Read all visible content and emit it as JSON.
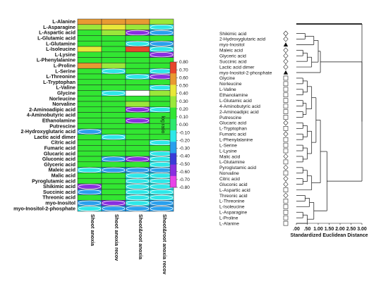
{
  "chart_data": [
    {
      "type": "heatmap",
      "rows": [
        "L-Alanine",
        "L-Asparagine",
        "L-Aspartic acid",
        "L-Glutamic acid",
        "L-Glutamine",
        "L-Isoleucine",
        "L-Lysine",
        "L-Phenylalanine",
        "L-Proline",
        "L-Serine",
        "L-Threonine",
        "L-Tryptophan",
        "L-Valine",
        "Glycine",
        "Norleucine",
        "Norvaline",
        "2-Aminoadipic acid",
        "4-Aminobutyric acid",
        "Ethanolamine",
        "Putrescine",
        "2-Hydroxyglutaric acid",
        "Lactic acid dimer",
        "Citric acid",
        "Fumaric acid",
        "Glucaric acid",
        "Gluconic acid",
        "Glyceric acid",
        "Maleic acid",
        "Malic acid",
        "Pyroglutamic acid",
        "Shikimic acid",
        "Succinic acid",
        "Threonic acid",
        "myo-Inositol",
        "myo-Inositol-2-phosphate"
      ],
      "columns": [
        "Shoot anoxia",
        "Shoot anoxia recov",
        "Shoot&root anoxia",
        "Shoot&root anoxia recov"
      ],
      "values": [
        [
          0.6,
          0.55,
          0.6,
          0.3
        ],
        [
          0.25,
          0.4,
          0.25,
          -0.2
        ],
        [
          0.2,
          0.25,
          -0.55,
          -0.25
        ],
        [
          0.2,
          0.2,
          0.2,
          0.15
        ],
        [
          0.2,
          0.2,
          -0.2,
          -0.25
        ],
        [
          0.4,
          0.2,
          0.8,
          -0.2
        ],
        [
          0.2,
          0.2,
          0.2,
          -0.55
        ],
        [
          0.2,
          0.2,
          0.2,
          0.15
        ],
        [
          0.6,
          0.25,
          0.2,
          0.2
        ],
        [
          0.2,
          -0.2,
          0.2,
          -0.2
        ],
        [
          0.2,
          0.2,
          -0.2,
          -0.55
        ],
        [
          0.2,
          0.2,
          0.2,
          0.2
        ],
        [
          0.2,
          0.2,
          0.2,
          -0.2
        ],
        [
          0.2,
          -0.2,
          null,
          0.3
        ],
        [
          0.2,
          0.2,
          0.2,
          0.2
        ],
        [
          0.2,
          0.2,
          0.3,
          0.2
        ],
        [
          0.2,
          0.2,
          -0.55,
          -0.2
        ],
        [
          0.2,
          0.2,
          0.2,
          0.2
        ],
        [
          0.2,
          0.2,
          -0.55,
          0.2
        ],
        [
          0.2,
          0.2,
          0.2,
          0.2
        ],
        [
          -0.35,
          0.2,
          0.2,
          0.2
        ],
        [
          0.2,
          -0.2,
          0.2,
          0.2
        ],
        [
          0.2,
          0.2,
          0.2,
          -0.2
        ],
        [
          0.2,
          0.2,
          0.2,
          0.2
        ],
        [
          0.2,
          0.2,
          0.2,
          -0.2
        ],
        [
          0.2,
          -0.25,
          -0.55,
          -0.2
        ],
        [
          0.2,
          0.2,
          0.2,
          -0.2
        ],
        [
          -0.2,
          -0.25,
          -0.25,
          -0.25
        ],
        [
          0.2,
          0.2,
          -0.2,
          -0.2
        ],
        [
          0.2,
          0.2,
          -0.2,
          -0.2
        ],
        [
          -0.55,
          0.2,
          -0.2,
          -0.2
        ],
        [
          -0.25,
          0.2,
          -0.2,
          -0.2
        ],
        [
          0.2,
          0.2,
          -0.2,
          -0.2
        ],
        [
          -0.25,
          -0.55,
          -0.2,
          -0.25
        ],
        [
          -0.2,
          -0.25,
          -0.25,
          -0.25
        ]
      ],
      "colorbar": {
        "label": "log ratio",
        "ticks": [
          "0.80",
          "0.70",
          "0.60",
          "0.50",
          "0.40",
          "0.30",
          "0.20",
          "0.10",
          "0.00",
          "-0.10",
          "-0.20",
          "-0.30",
          "-0.40",
          "-0.50",
          "-0.60",
          "-0.70",
          "-0.80"
        ],
        "range": [
          -0.8,
          0.8
        ],
        "colors": [
          "#e844e8",
          "#8a2ee0",
          "#3a3ad8",
          "#2aa0ee",
          "#2ee8e8",
          "#2ee86e",
          "#32e632",
          "#9ae83a",
          "#e8e83a",
          "#e89a32",
          "#e8462e"
        ]
      }
    },
    {
      "type": "dendrogram",
      "leaves": [
        {
          "name": "Shikimic acid",
          "marker": "diamond"
        },
        {
          "name": "2-Hydroxyglutaric acid",
          "marker": "diamond"
        },
        {
          "name": "myo-Inositol",
          "marker": "triangle"
        },
        {
          "name": "Maleic acid",
          "marker": "diamond"
        },
        {
          "name": "Glyceric acid",
          "marker": "diamond"
        },
        {
          "name": "Succinic acid",
          "marker": "diamond"
        },
        {
          "name": "Lactic acid dimer",
          "marker": "diamond"
        },
        {
          "name": "myo-Inositol-2-phosphate",
          "marker": "triangle"
        },
        {
          "name": "Glycine",
          "marker": "square"
        },
        {
          "name": "Norleucine",
          "marker": "square"
        },
        {
          "name": "L-Valine",
          "marker": "square"
        },
        {
          "name": "Ethanolamine",
          "marker": "square"
        },
        {
          "name": "L-Glutamic acid",
          "marker": "square"
        },
        {
          "name": "4-Aminobutyric acid",
          "marker": "square"
        },
        {
          "name": "2-Aminoadipic acid",
          "marker": "square"
        },
        {
          "name": "Putrescine",
          "marker": "square"
        },
        {
          "name": "Glucaric acid",
          "marker": "diamond"
        },
        {
          "name": "L-Tryptophan",
          "marker": "square"
        },
        {
          "name": "Fumaric acid",
          "marker": "diamond"
        },
        {
          "name": "L-Phenylalanine",
          "marker": "square"
        },
        {
          "name": "L-Serine",
          "marker": "square"
        },
        {
          "name": "L-Lysine",
          "marker": "square"
        },
        {
          "name": "Malic acid",
          "marker": "diamond"
        },
        {
          "name": "L-Glutamine",
          "marker": "square"
        },
        {
          "name": "Pyroglutamic acid",
          "marker": "diamond"
        },
        {
          "name": "Norvaline",
          "marker": "square"
        },
        {
          "name": "Citric acid",
          "marker": "diamond"
        },
        {
          "name": "Gluconic acid",
          "marker": "diamond"
        },
        {
          "name": "L-Aspartic acid",
          "marker": "square"
        },
        {
          "name": "Threonic acid",
          "marker": "diamond"
        },
        {
          "name": "L-Threonine",
          "marker": "square"
        },
        {
          "name": "L-Isoleucine",
          "marker": "square"
        },
        {
          "name": "L-Asparagine",
          "marker": "square"
        },
        {
          "name": "L-Proline",
          "marker": "square"
        },
        {
          "name": "L-Alanine",
          "marker": "square"
        }
      ],
      "xlabel": "Standardized Euclidean Distance",
      "xticks": [
        ".00",
        ".50",
        "1.00",
        "1.50",
        "2.00",
        "2.50",
        "3.00"
      ],
      "xlim": [
        0,
        3.0
      ],
      "merges": [
        {
          "a": 0,
          "b": 1,
          "h": 0.4
        },
        {
          "a": 3,
          "b": 4,
          "h": 0.3
        },
        {
          "a": "m1",
          "b": 5,
          "h": 0.5
        },
        {
          "a": "m2",
          "b": 6,
          "h": 0.7
        },
        {
          "a": "m0",
          "b": 2,
          "h": 0.8
        },
        {
          "a": "m4",
          "b": "m3",
          "h": 1.0
        },
        {
          "a": "m5",
          "b": 7,
          "h": 1.1
        },
        {
          "a": 8,
          "b": 9,
          "h": 0.3
        },
        {
          "a": 10,
          "b": 11,
          "h": 0.3
        },
        {
          "a": "m7",
          "b": "m8",
          "h": 0.5
        },
        {
          "a": 12,
          "b": 13,
          "h": 0.3
        },
        {
          "a": 14,
          "b": 15,
          "h": 0.3
        },
        {
          "a": "m10",
          "b": "m11",
          "h": 0.45
        },
        {
          "a": "m9",
          "b": "m12",
          "h": 0.7
        },
        {
          "a": 16,
          "b": 17,
          "h": 0.3
        },
        {
          "a": 18,
          "b": 19,
          "h": 0.3
        },
        {
          "a": "m14",
          "b": "m15",
          "h": 0.5
        },
        {
          "a": 20,
          "b": 21,
          "h": 0.3
        },
        {
          "a": 22,
          "b": 23,
          "h": 0.3
        },
        {
          "a": "m17",
          "b": "m18",
          "h": 0.5
        },
        {
          "a": "m16",
          "b": "m19",
          "h": 0.7
        },
        {
          "a": "m13",
          "b": "m20",
          "h": 0.9
        },
        {
          "a": 24,
          "b": 25,
          "h": 0.3
        },
        {
          "a": 26,
          "b": 27,
          "h": 0.3
        },
        {
          "a": "m22",
          "b": "m23",
          "h": 0.5
        },
        {
          "a": "m24",
          "b": 28,
          "h": 0.7
        },
        {
          "a": "m21",
          "b": "m25",
          "h": 1.1
        },
        {
          "a": 29,
          "b": 30,
          "h": 0.4
        },
        {
          "a": "m27",
          "b": 31,
          "h": 0.6
        },
        {
          "a": 32,
          "b": 33,
          "h": 0.3
        },
        {
          "a": "m29",
          "b": 34,
          "h": 0.5
        },
        {
          "a": "m28",
          "b": "m30",
          "h": 0.8
        },
        {
          "a": "m26",
          "b": "m31",
          "h": 1.4
        },
        {
          "a": "m6",
          "b": "m32",
          "h": 3.0
        }
      ]
    }
  ]
}
